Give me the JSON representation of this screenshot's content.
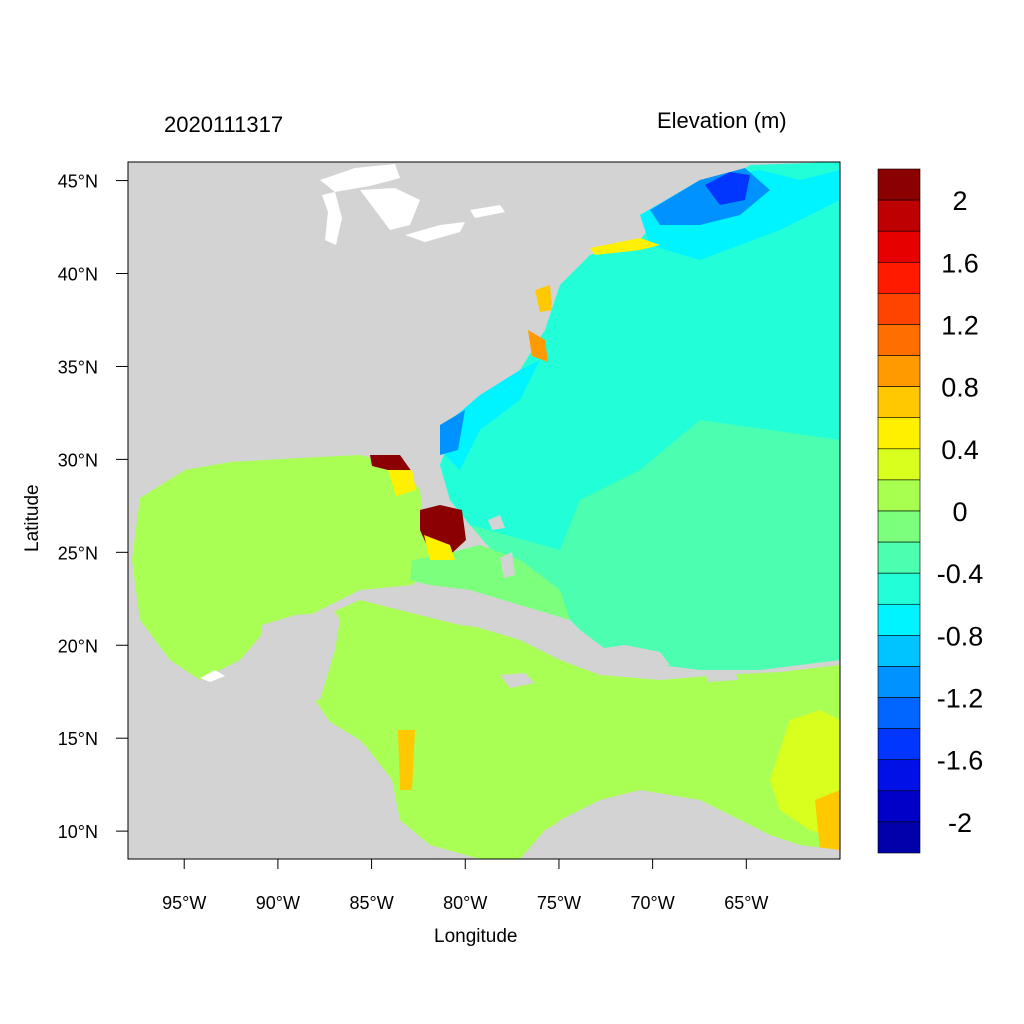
{
  "header": {
    "date_label": "2020111317",
    "units_label": "Elevation (m)"
  },
  "axes": {
    "x_title": "Longitude",
    "y_title": "Latitude",
    "lon_range": [
      -98,
      -60
    ],
    "lat_range": [
      8.5,
      46
    ],
    "x_ticks": [
      {
        "value": -95,
        "label": "95°W"
      },
      {
        "value": -90,
        "label": "90°W"
      },
      {
        "value": -85,
        "label": "85°W"
      },
      {
        "value": -80,
        "label": "80°W"
      },
      {
        "value": -75,
        "label": "75°W"
      },
      {
        "value": -70,
        "label": "70°W"
      },
      {
        "value": -65,
        "label": "65°W"
      }
    ],
    "y_ticks": [
      {
        "value": 45,
        "label": "45°N"
      },
      {
        "value": 40,
        "label": "40°N"
      },
      {
        "value": 35,
        "label": "35°N"
      },
      {
        "value": 30,
        "label": "30°N"
      },
      {
        "value": 25,
        "label": "25°N"
      },
      {
        "value": 20,
        "label": "20°N"
      },
      {
        "value": 15,
        "label": "15°N"
      },
      {
        "value": 10,
        "label": "10°N"
      }
    ]
  },
  "colorbar": {
    "levels_top_to_bottom": [
      {
        "color": "#8b0000"
      },
      {
        "color": "#bf0000"
      },
      {
        "color": "#e60000"
      },
      {
        "color": "#ff1a00"
      },
      {
        "color": "#ff4400"
      },
      {
        "color": "#ff6e00"
      },
      {
        "color": "#ff9a00"
      },
      {
        "color": "#ffc800"
      },
      {
        "color": "#fff000"
      },
      {
        "color": "#d8ff1e"
      },
      {
        "color": "#a8ff50"
      },
      {
        "color": "#7cff7c"
      },
      {
        "color": "#4cffb0"
      },
      {
        "color": "#22ffd8"
      },
      {
        "color": "#00f4ff"
      },
      {
        "color": "#00c4ff"
      },
      {
        "color": "#0092ff"
      },
      {
        "color": "#0066ff"
      },
      {
        "color": "#0036ff"
      },
      {
        "color": "#0010e6"
      },
      {
        "color": "#0000c8"
      },
      {
        "color": "#0000aa"
      }
    ],
    "labels": [
      "2",
      "1.6",
      "1.2",
      "0.8",
      "0.4",
      "0",
      "-0.4",
      "-0.8",
      "-1.2",
      "-1.6",
      "-2"
    ]
  },
  "colors": {
    "land": "#d3d3d3",
    "lake": "#ffffff",
    "gulf": "#aaff55",
    "atlantic": "#4cffb0",
    "shelf": "#22ffd8"
  }
}
